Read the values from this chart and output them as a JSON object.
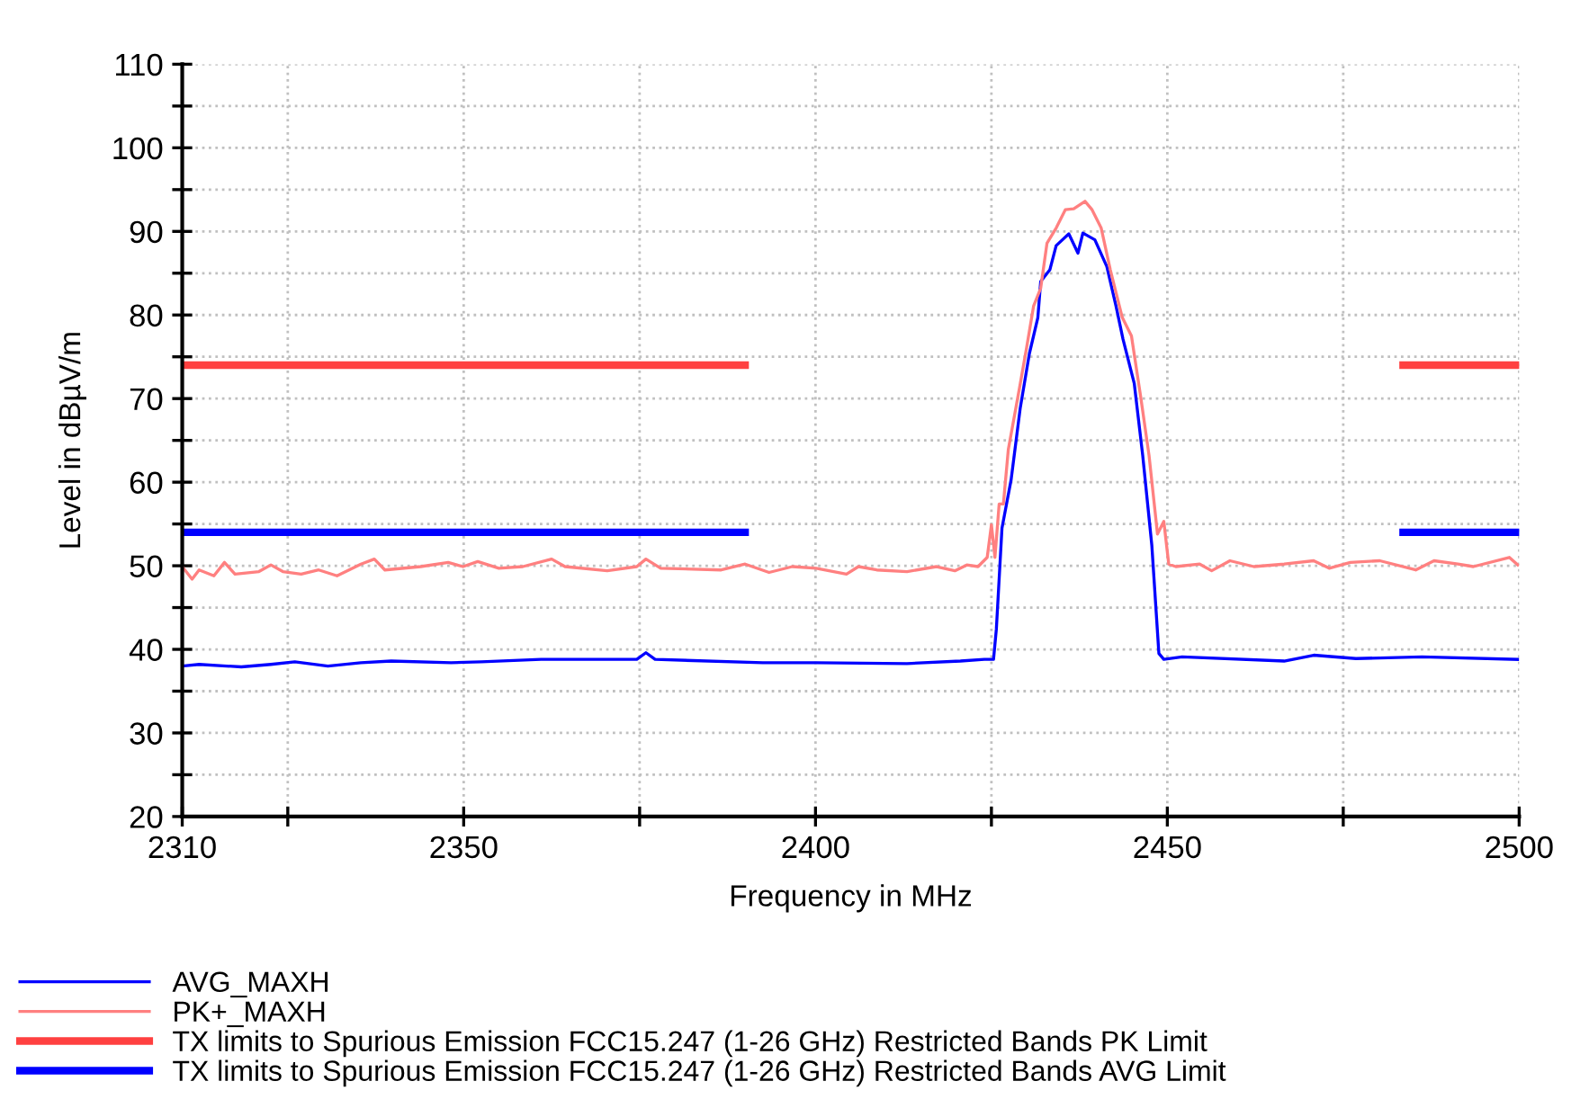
{
  "chart_data": {
    "type": "line",
    "xlabel": "Frequency in MHz",
    "ylabel": "Level in dBµV/m",
    "xlim": [
      2310,
      2500
    ],
    "ylim": [
      20,
      110
    ],
    "xticks": [
      2310,
      {
        "value": 2325,
        "label": null
      },
      2350,
      {
        "value": 2375,
        "label": null
      },
      2400,
      {
        "value": 2425,
        "label": null
      },
      2450,
      {
        "value": 2475,
        "label": null
      },
      2500
    ],
    "yticks": [
      20,
      {
        "value": 25,
        "label": null
      },
      30,
      {
        "value": 35,
        "label": null
      },
      40,
      {
        "value": 45,
        "label": null
      },
      50,
      {
        "value": 55,
        "label": null
      },
      60,
      {
        "value": 65,
        "label": null
      },
      70,
      {
        "value": 75,
        "label": null
      },
      80,
      {
        "value": 85,
        "label": null
      },
      90,
      {
        "value": 95,
        "label": null
      },
      100,
      {
        "value": 105,
        "label": null
      },
      110
    ],
    "grid": true,
    "legend": "bottom",
    "marker": "none",
    "series": [
      {
        "name": "AVG_MAXH",
        "color": "#0000ff",
        "line_style": "solid",
        "x": [
          2310,
          2312.4,
          2318.4,
          2322.6,
          2326.0,
          2330.7,
          2335.4,
          2339.7,
          2348.2,
          2352.5,
          2361.0,
          2374.6,
          2375.9,
          2377.2,
          2392.5,
          2400.1,
          2413.0,
          2420.6,
          2424.0,
          2425.3,
          2425.7,
          2426.5,
          2427.8,
          2429.1,
          2430.4,
          2431.6,
          2432.0,
          2433.3,
          2434.2,
          2436.0,
          2437.3,
          2438.0,
          2439.7,
          2441.4,
          2442.7,
          2443.7,
          2445.3,
          2446.5,
          2447.8,
          2448.8,
          2449.5,
          2452.1,
          2466.6,
          2470.8,
          2476.8,
          2486.2,
          2499.8
        ],
        "values": [
          38.0,
          38.2,
          37.9,
          38.2,
          38.5,
          38.0,
          38.4,
          38.6,
          38.4,
          38.5,
          38.8,
          38.8,
          39.6,
          38.8,
          38.4,
          38.4,
          38.3,
          38.6,
          38.8,
          38.8,
          42.4,
          54.5,
          60.3,
          68.9,
          75.4,
          79.7,
          84.0,
          85.4,
          88.3,
          89.7,
          87.4,
          89.8,
          89.0,
          85.8,
          81.1,
          77.1,
          71.8,
          63.2,
          52.4,
          39.5,
          38.8,
          39.1,
          38.6,
          39.3,
          38.9,
          39.1,
          38.8
        ]
      },
      {
        "name": "PK+_MAXH",
        "color": "#ff8080",
        "line_style": "solid",
        "x": [
          2310,
          2311.4,
          2312.4,
          2314.5,
          2316.0,
          2317.5,
          2320.9,
          2322.6,
          2324.3,
          2326.9,
          2329.4,
          2332.0,
          2335.4,
          2337.3,
          2338.8,
          2343.9,
          2347.8,
          2349.9,
          2352.0,
          2355.0,
          2358.4,
          2362.5,
          2364.4,
          2370.4,
          2374.6,
          2375.9,
          2378.0,
          2386.6,
          2390.0,
          2393.4,
          2396.7,
          2400.1,
          2404.4,
          2406.1,
          2408.7,
          2413.0,
          2417.2,
          2419.8,
          2421.5,
          2423.1,
          2424.4,
          2425.0,
          2425.5,
          2426.1,
          2426.7,
          2427.4,
          2429.1,
          2430.0,
          2431.0,
          2432.0,
          2432.9,
          2434.2,
          2435.5,
          2436.7,
          2438.3,
          2439.3,
          2440.6,
          2441.9,
          2443.6,
          2444.9,
          2446.2,
          2447.4,
          2448.6,
          2449.5,
          2450.2,
          2451.2,
          2454.6,
          2456.3,
          2458.9,
          2462.3,
          2466.6,
          2470.8,
          2473.0,
          2476.0,
          2480.2,
          2485.3,
          2487.9,
          2491.3,
          2493.5,
          2498.6,
          2499.8
        ],
        "values": [
          49.9,
          48.4,
          49.5,
          48.8,
          50.4,
          49.0,
          49.3,
          50.1,
          49.3,
          49.0,
          49.5,
          48.8,
          50.2,
          50.8,
          49.5,
          49.9,
          50.4,
          49.9,
          50.5,
          49.7,
          49.9,
          50.8,
          49.9,
          49.4,
          49.9,
          50.8,
          49.7,
          49.5,
          50.2,
          49.2,
          49.9,
          49.7,
          49.0,
          49.9,
          49.5,
          49.3,
          49.9,
          49.4,
          50.1,
          49.9,
          51.0,
          54.9,
          51.0,
          57.4,
          57.4,
          63.9,
          71.8,
          76.1,
          81.1,
          83.2,
          88.6,
          90.4,
          92.6,
          92.7,
          93.6,
          92.6,
          90.4,
          85.4,
          79.7,
          77.5,
          70.3,
          63.2,
          53.8,
          55.3,
          50.2,
          49.9,
          50.2,
          49.4,
          50.6,
          49.9,
          50.2,
          50.6,
          49.7,
          50.4,
          50.6,
          49.5,
          50.6,
          50.2,
          49.9,
          51.0,
          50.1
        ]
      },
      {
        "name": "TX limits to Spurious Emission FCC15.247 (1-26 GHz) Restricted Bands PK Limit",
        "color": "#ff4040",
        "line_style": "solid",
        "x": [
          2310,
          2390,
          2436,
          2483.5,
          2500
        ],
        "values": [
          74,
          74,
          null,
          74,
          74
        ]
      },
      {
        "name": "TX limits to Spurious Emission FCC15.247 (1-26 GHz) Restricted Bands AVG Limit",
        "color": "#0000ff",
        "line_style": "solid",
        "x": [
          2310,
          2390,
          2436,
          2483.5,
          2500
        ],
        "values": [
          54,
          54,
          null,
          54,
          54
        ]
      }
    ]
  }
}
